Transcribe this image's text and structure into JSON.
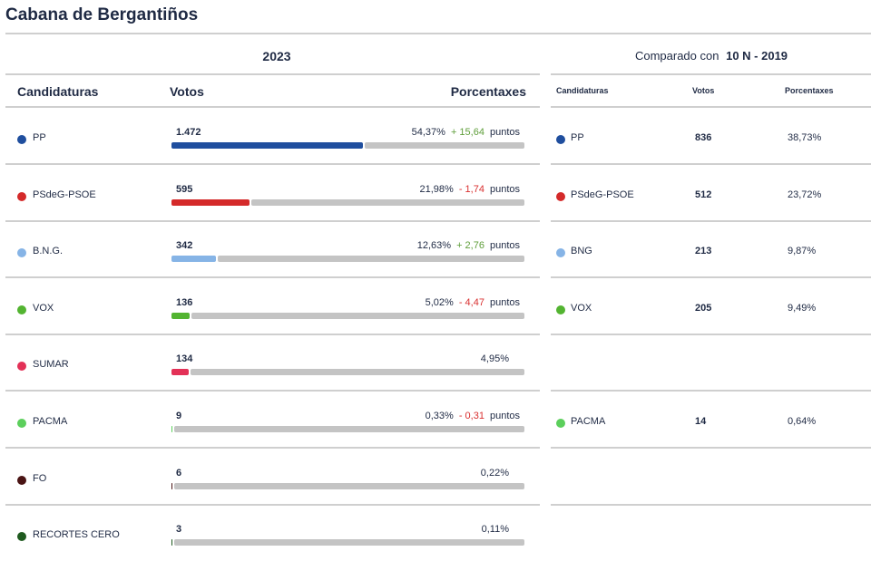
{
  "title": "Cabana de Bergantiños",
  "year_label": "2023",
  "compare": {
    "prefix": "Comparado con",
    "election": "10 N - 2019"
  },
  "headers": {
    "candidates": "Candidaturas",
    "votes": "Votos",
    "percent": "Porcentaxes"
  },
  "compare_headers": {
    "candidates": "Candidaturas",
    "votes": "Votos",
    "percent": "Porcentaxes"
  },
  "colors": {
    "positive": "#5f9e3a",
    "negative": "#d93030",
    "bar_rest": "#c4c4c4"
  },
  "rows": [
    {
      "name": "PP",
      "color": "#1f4e9e",
      "votes": "1.472",
      "percent": "54,37%",
      "share": 54.37,
      "delta": "+ 15,64",
      "delta_sign": "positive",
      "unit": "puntos",
      "prev_name": "PP",
      "prev_votes": "836",
      "prev_percent": "38,73%"
    },
    {
      "name": "PSdeG-PSOE",
      "color": "#d42a2a",
      "votes": "595",
      "percent": "21,98%",
      "share": 21.98,
      "delta": "- 1,74",
      "delta_sign": "negative",
      "unit": "puntos",
      "prev_name": "PSdeG-PSOE",
      "prev_votes": "512",
      "prev_percent": "23,72%"
    },
    {
      "name": "B.N.G.",
      "color": "#86b4e6",
      "votes": "342",
      "percent": "12,63%",
      "share": 12.63,
      "delta": "+ 2,76",
      "delta_sign": "positive",
      "unit": "puntos",
      "prev_name": "BNG",
      "prev_votes": "213",
      "prev_percent": "9,87%"
    },
    {
      "name": "VOX",
      "color": "#53b431",
      "votes": "136",
      "percent": "5,02%",
      "share": 5.02,
      "delta": "- 4,47",
      "delta_sign": "negative",
      "unit": "puntos",
      "prev_name": "VOX",
      "prev_votes": "205",
      "prev_percent": "9,49%"
    },
    {
      "name": "SUMAR",
      "color": "#e33157",
      "votes": "134",
      "percent": "4,95%",
      "share": 4.95,
      "delta": "",
      "delta_sign": "",
      "unit": "",
      "prev_name": "",
      "prev_votes": "",
      "prev_percent": ""
    },
    {
      "name": "PACMA",
      "color": "#5ccf5c",
      "votes": "9",
      "percent": "0,33%",
      "share": 0.33,
      "delta": "- 0,31",
      "delta_sign": "negative",
      "unit": "puntos",
      "prev_name": "PACMA",
      "prev_votes": "14",
      "prev_percent": "0,64%"
    },
    {
      "name": "FO",
      "color": "#4a1414",
      "votes": "6",
      "percent": "0,22%",
      "share": 0.22,
      "delta": "",
      "delta_sign": "",
      "unit": "",
      "prev_name": "",
      "prev_votes": "",
      "prev_percent": ""
    },
    {
      "name": "RECORTES CERO",
      "color": "#1f5a1f",
      "votes": "3",
      "percent": "0,11%",
      "share": 0.11,
      "delta": "",
      "delta_sign": "",
      "unit": "",
      "prev_name": "",
      "prev_votes": "",
      "prev_percent": ""
    }
  ]
}
